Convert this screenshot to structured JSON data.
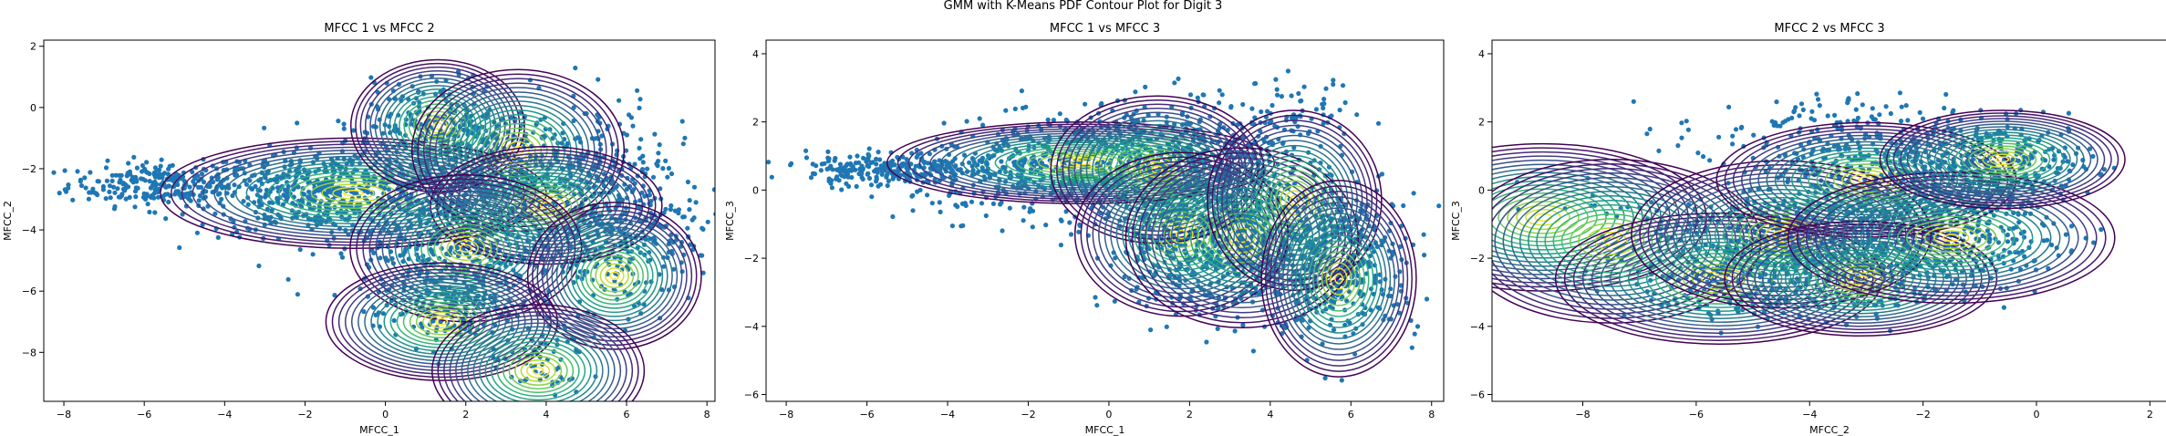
{
  "figure": {
    "suptitle": "GMM with K-Means PDF Contour Plot for Digit 3"
  },
  "chart_data": [
    {
      "type": "scatter",
      "title": "MFCC 1 vs MFCC 2",
      "xlabel": "MFCC_1",
      "ylabel": "MFCC_2",
      "xlim": [
        -8.5,
        8.2
      ],
      "ylim": [
        -9.6,
        2.2
      ],
      "xticks": [
        -8,
        -6,
        -4,
        -2,
        0,
        2,
        4,
        6,
        8
      ],
      "yticks": [
        -8,
        -6,
        -4,
        -2,
        0,
        2
      ],
      "scatter_color": "#1f77b4",
      "contour_colormap": "viridis",
      "scatter_regions": [
        {
          "cx": -5.5,
          "cy": -2.5,
          "sx": 1.2,
          "sy": 0.35,
          "n": 260
        },
        {
          "cx": -1.5,
          "cy": -2.8,
          "sx": 1.6,
          "sy": 0.7,
          "n": 520
        },
        {
          "cx": 3.0,
          "cy": -2.2,
          "sx": 2.0,
          "sy": 1.2,
          "n": 650
        },
        {
          "cx": 1.8,
          "cy": -4.6,
          "sx": 1.2,
          "sy": 1.0,
          "n": 380
        },
        {
          "cx": 5.8,
          "cy": -4.0,
          "sx": 1.0,
          "sy": 1.3,
          "n": 320
        },
        {
          "cx": 1.5,
          "cy": -6.6,
          "sx": 0.9,
          "sy": 0.6,
          "n": 140
        },
        {
          "cx": 3.8,
          "cy": -8.3,
          "sx": 0.6,
          "sy": 0.6,
          "n": 60
        },
        {
          "cx": 1.3,
          "cy": -0.5,
          "sx": 0.8,
          "sy": 0.7,
          "n": 160
        }
      ],
      "components": [
        {
          "mx": -0.8,
          "my": -2.8,
          "sx": 2.0,
          "sy": 0.75
        },
        {
          "mx": 1.3,
          "my": -0.6,
          "sx": 0.9,
          "sy": 0.9
        },
        {
          "mx": 3.3,
          "my": -1.4,
          "sx": 1.1,
          "sy": 1.1
        },
        {
          "mx": 4.0,
          "my": -3.2,
          "sx": 1.2,
          "sy": 0.8
        },
        {
          "mx": 2.0,
          "my": -4.6,
          "sx": 1.2,
          "sy": 1.0
        },
        {
          "mx": 5.7,
          "my": -5.5,
          "sx": 0.9,
          "sy": 1.0
        },
        {
          "mx": 1.4,
          "my": -7.0,
          "sx": 1.2,
          "sy": 0.8
        },
        {
          "mx": 3.8,
          "my": -8.6,
          "sx": 1.1,
          "sy": 0.9
        }
      ]
    },
    {
      "type": "scatter",
      "title": "MFCC 1 vs MFCC 3",
      "xlabel": "MFCC_1",
      "ylabel": "MFCC_3",
      "xlim": [
        -8.5,
        8.3
      ],
      "ylim": [
        -6.2,
        4.4
      ],
      "xticks": [
        -8,
        -6,
        -4,
        -2,
        0,
        2,
        4,
        6,
        8
      ],
      "yticks": [
        -6,
        -4,
        -2,
        0,
        2,
        4
      ],
      "scatter_color": "#1f77b4",
      "contour_colormap": "viridis",
      "scatter_regions": [
        {
          "cx": -5.5,
          "cy": 0.6,
          "sx": 1.0,
          "sy": 0.25,
          "n": 260
        },
        {
          "cx": -1.5,
          "cy": 0.6,
          "sx": 1.6,
          "sy": 0.7,
          "n": 480
        },
        {
          "cx": 1.5,
          "cy": 0.8,
          "sx": 1.2,
          "sy": 0.9,
          "n": 420
        },
        {
          "cx": 3.3,
          "cy": -1.2,
          "sx": 1.4,
          "sy": 1.2,
          "n": 600
        },
        {
          "cx": 5.7,
          "cy": -2.2,
          "sx": 1.0,
          "sy": 1.0,
          "n": 380
        },
        {
          "cx": 4.5,
          "cy": 2.0,
          "sx": 0.8,
          "sy": 0.6,
          "n": 90
        },
        {
          "cx": 1.8,
          "cy": -1.6,
          "sx": 1.0,
          "sy": 0.9,
          "n": 240
        }
      ],
      "components": [
        {
          "mx": -0.7,
          "my": 0.8,
          "sx": 2.0,
          "sy": 0.5
        },
        {
          "mx": 1.2,
          "my": 0.6,
          "sx": 1.1,
          "sy": 0.9
        },
        {
          "mx": 1.8,
          "my": -1.3,
          "sx": 1.1,
          "sy": 1.0
        },
        {
          "mx": 3.3,
          "my": -1.4,
          "sx": 1.2,
          "sy": 1.1
        },
        {
          "mx": 4.6,
          "my": -0.3,
          "sx": 0.9,
          "sy": 1.1
        },
        {
          "mx": 5.7,
          "my": -2.6,
          "sx": 0.8,
          "sy": 1.2
        }
      ]
    },
    {
      "type": "scatter",
      "title": "MFCC 2 vs MFCC 3",
      "xlabel": "MFCC_2",
      "ylabel": "MFCC_3",
      "xlim": [
        -9.6,
        2.3
      ],
      "ylim": [
        -6.2,
        4.4
      ],
      "xticks": [
        -8,
        -6,
        -4,
        -2,
        0,
        2
      ],
      "yticks": [
        -6,
        -4,
        -2,
        0,
        2,
        4
      ],
      "scatter_color": "#1f77b4",
      "contour_colormap": "viridis",
      "scatter_regions": [
        {
          "cx": -0.6,
          "cy": 0.8,
          "sx": 0.8,
          "sy": 0.6,
          "n": 300
        },
        {
          "cx": -2.8,
          "cy": 0.4,
          "sx": 1.0,
          "sy": 0.7,
          "n": 360
        },
        {
          "cx": -4.3,
          "cy": -1.4,
          "sx": 1.0,
          "sy": 0.8,
          "n": 380
        },
        {
          "cx": -1.6,
          "cy": -1.4,
          "sx": 1.0,
          "sy": 0.7,
          "n": 340
        },
        {
          "cx": -5.3,
          "cy": -2.5,
          "sx": 0.9,
          "sy": 0.7,
          "n": 220
        },
        {
          "cx": -3.0,
          "cy": -2.5,
          "sx": 0.8,
          "sy": 0.7,
          "n": 160
        },
        {
          "cx": -4.0,
          "cy": 1.8,
          "sx": 1.2,
          "sy": 0.5,
          "n": 120
        },
        {
          "cx": -7.2,
          "cy": -0.5,
          "sx": 0.8,
          "sy": 0.4,
          "n": 20
        }
      ],
      "components": [
        {
          "mx": -8.7,
          "my": -0.8,
          "sx": 1.2,
          "sy": 0.9
        },
        {
          "mx": -7.5,
          "my": -1.5,
          "sx": 1.1,
          "sy": 1.0
        },
        {
          "mx": -5.6,
          "my": -2.6,
          "sx": 1.2,
          "sy": 0.8
        },
        {
          "mx": -4.5,
          "my": -1.3,
          "sx": 1.1,
          "sy": 0.9
        },
        {
          "mx": -3.0,
          "my": 0.3,
          "sx": 1.1,
          "sy": 0.7
        },
        {
          "mx": -3.1,
          "my": -2.6,
          "sx": 1.0,
          "sy": 0.7
        },
        {
          "mx": -1.5,
          "my": -1.4,
          "sx": 1.2,
          "sy": 0.8
        },
        {
          "mx": -0.6,
          "my": 0.9,
          "sx": 0.9,
          "sy": 0.6
        }
      ]
    }
  ]
}
